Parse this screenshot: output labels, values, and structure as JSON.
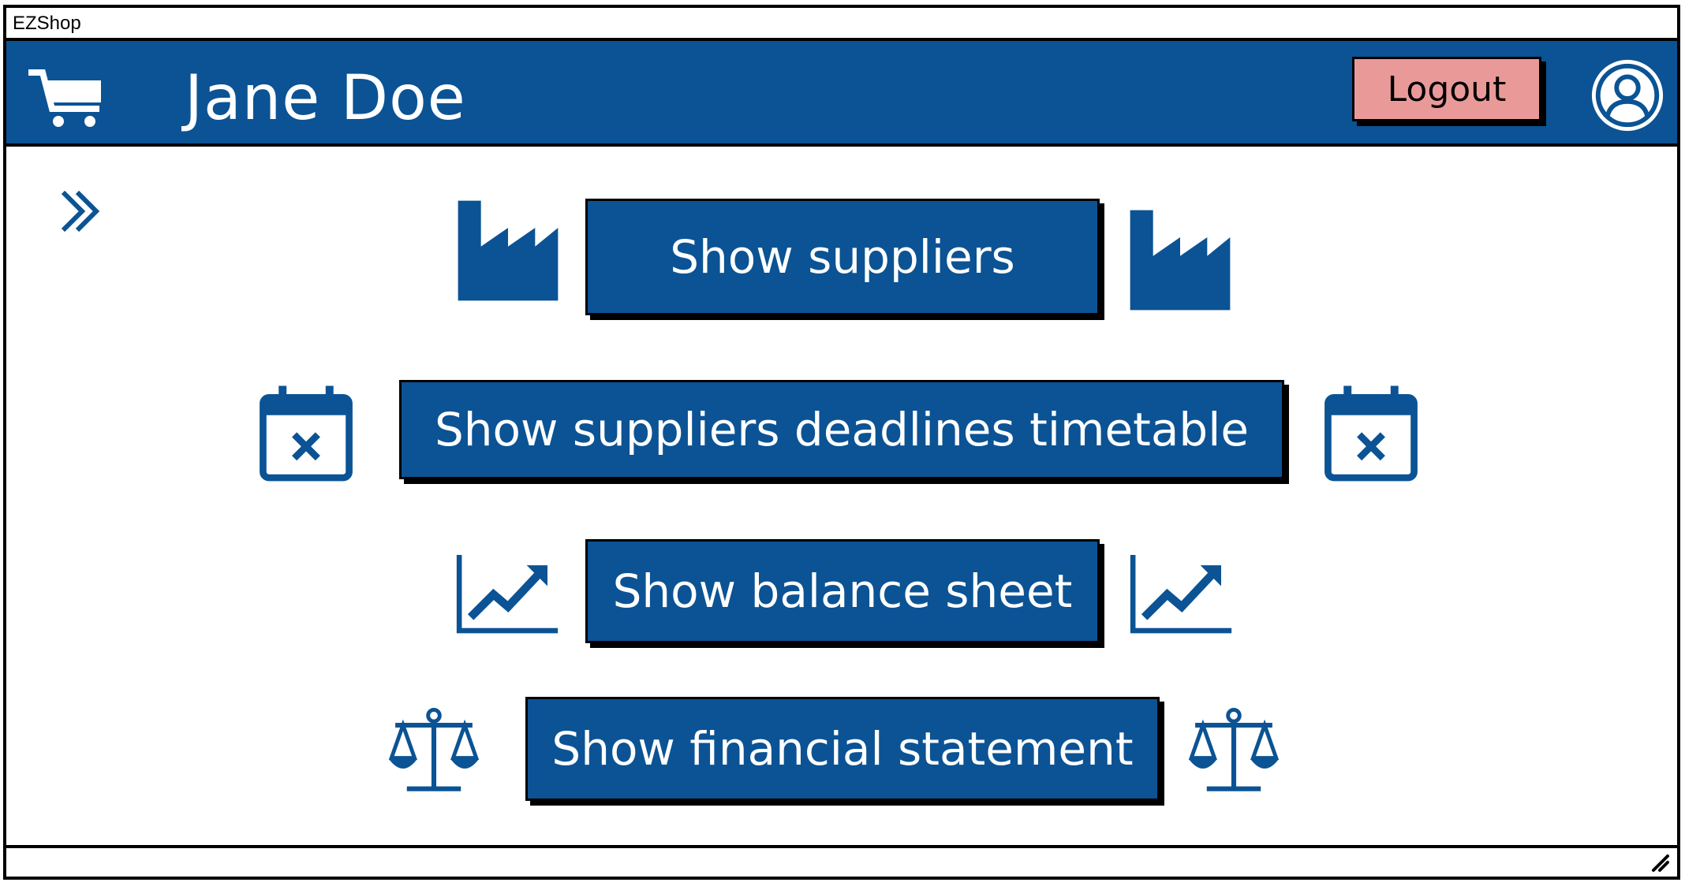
{
  "window": {
    "title": "EZShop"
  },
  "header": {
    "user_name": "Jane Doe",
    "logout_label": "Logout",
    "icons": {
      "cart": "shopping-cart-icon",
      "avatar": "user-avatar-icon"
    }
  },
  "sidebar": {
    "expand_icon": "double-chevron-right-icon"
  },
  "main": {
    "buttons": [
      {
        "label": "Show suppliers",
        "icon": "factory-icon"
      },
      {
        "label": "Show suppliers deadlines timetable",
        "icon": "calendar-x-icon"
      },
      {
        "label": "Show balance sheet",
        "icon": "trending-up-chart-icon"
      },
      {
        "label": "Show financial statement",
        "icon": "balance-scale-icon"
      }
    ]
  },
  "colors": {
    "primary": "#0b5394",
    "logout": "#ea9999",
    "border": "#000000"
  }
}
